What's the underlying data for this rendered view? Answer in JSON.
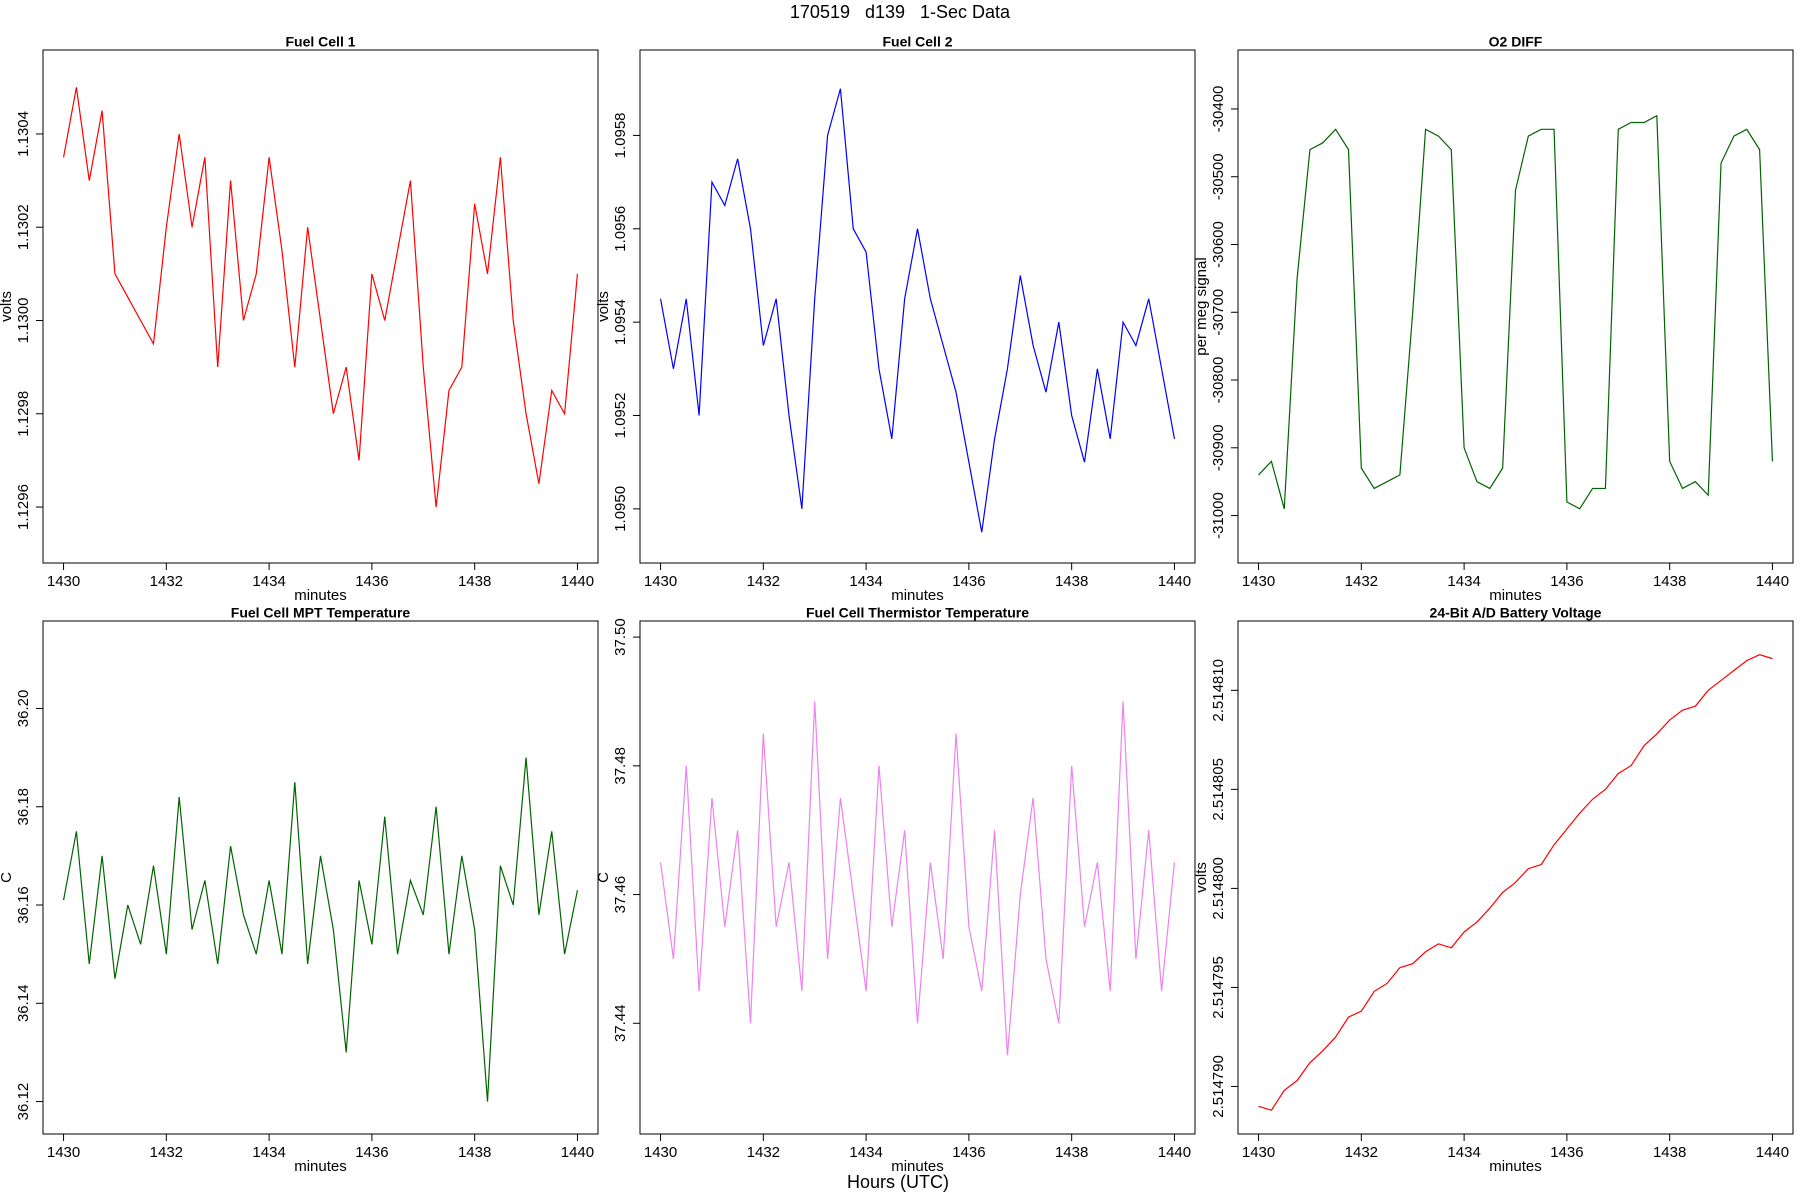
{
  "title": "170519   d139   1-Sec Data",
  "xlabel": "Hours (UTC)",
  "chart_data": [
    {
      "type": "line",
      "title": "Fuel Cell 1",
      "xlabel": "minutes",
      "ylabel": "volts",
      "color": "#ff0000",
      "x": [
        1430,
        1430.25,
        1430.5,
        1430.75,
        1431,
        1431.25,
        1431.5,
        1431.75,
        1432,
        1432.25,
        1432.5,
        1432.75,
        1433,
        1433.25,
        1433.5,
        1433.75,
        1434,
        1434.25,
        1434.5,
        1434.75,
        1435,
        1435.25,
        1435.5,
        1435.75,
        1436,
        1436.25,
        1436.5,
        1436.75,
        1437,
        1437.25,
        1437.5,
        1437.75,
        1438,
        1438.25,
        1438.5,
        1438.75,
        1439,
        1439.25,
        1439.5,
        1439.75,
        1440
      ],
      "values": [
        1.13035,
        1.1305,
        1.1303,
        1.13045,
        1.1301,
        1.13005,
        1.13,
        1.12995,
        1.1302,
        1.1304,
        1.1302,
        1.13035,
        1.1299,
        1.1303,
        1.13,
        1.1301,
        1.13035,
        1.13015,
        1.1299,
        1.1302,
        1.13,
        1.1298,
        1.1299,
        1.1297,
        1.1301,
        1.13,
        1.13015,
        1.1303,
        1.1299,
        1.1296,
        1.12985,
        1.1299,
        1.13025,
        1.1301,
        1.13035,
        1.13,
        1.1298,
        1.12965,
        1.12985,
        1.1298,
        1.1301
      ],
      "xlim": [
        1429.6,
        1440.4
      ],
      "xticks": [
        1430,
        1432,
        1434,
        1436,
        1438,
        1440
      ],
      "ylim": [
        1.12948,
        1.13058
      ],
      "yticks": [
        1.1296,
        1.1298,
        {
          "value": 1.13,
          "label": "1.1300"
        },
        1.1302,
        1.1304
      ]
    },
    {
      "type": "line",
      "title": "Fuel Cell 2",
      "xlabel": "minutes",
      "ylabel": "volts",
      "color": "#0000ff",
      "x": [
        1430,
        1430.25,
        1430.5,
        1430.75,
        1431,
        1431.25,
        1431.5,
        1431.75,
        1432,
        1432.25,
        1432.5,
        1432.75,
        1433,
        1433.25,
        1433.5,
        1433.75,
        1434,
        1434.25,
        1434.5,
        1434.75,
        1435,
        1435.25,
        1435.5,
        1435.75,
        1436,
        1436.25,
        1436.5,
        1436.75,
        1437,
        1437.25,
        1437.5,
        1437.75,
        1438,
        1438.25,
        1438.5,
        1438.75,
        1439,
        1439.25,
        1439.5,
        1439.75,
        1440
      ],
      "values": [
        1.09545,
        1.0953,
        1.09545,
        1.0952,
        1.0957,
        1.09565,
        1.09575,
        1.0956,
        1.09535,
        1.09545,
        1.0952,
        1.095,
        1.09545,
        1.0958,
        1.0959,
        1.0956,
        1.09555,
        1.0953,
        1.09515,
        1.09545,
        1.0956,
        1.09545,
        1.09535,
        1.09525,
        1.0951,
        1.09495,
        1.09515,
        1.0953,
        1.0955,
        1.09535,
        1.09525,
        1.0954,
        1.0952,
        1.0951,
        1.0953,
        1.09515,
        1.0954,
        1.09535,
        1.09545,
        1.0953,
        1.09515
      ],
      "xlim": [
        1429.6,
        1440.4
      ],
      "xticks": [
        1430,
        1432,
        1434,
        1436,
        1438,
        1440
      ],
      "ylim": [
        1.094884,
        1.095983
      ],
      "yticks": [
        {
          "value": 1.095,
          "label": "1.0950"
        },
        1.0952,
        1.0954,
        1.0956,
        1.0958
      ]
    },
    {
      "type": "line",
      "title": "O2 DIFF",
      "xlabel": "minutes",
      "ylabel": "per meg signal",
      "color": "#006400",
      "x": [
        1430,
        1430.25,
        1430.5,
        1430.75,
        1431,
        1431.25,
        1431.5,
        1431.75,
        1432,
        1432.25,
        1432.5,
        1432.75,
        1433,
        1433.25,
        1433.5,
        1433.75,
        1434,
        1434.25,
        1434.5,
        1434.75,
        1435,
        1435.25,
        1435.5,
        1435.75,
        1436,
        1436.25,
        1436.5,
        1436.75,
        1437,
        1437.25,
        1437.5,
        1437.75,
        1438,
        1438.25,
        1438.5,
        1438.75,
        1439,
        1439.25,
        1439.5,
        1439.75,
        1440
      ],
      "values": [
        -30940,
        -30920,
        -30990,
        -30650,
        -30460,
        -30450,
        -30430,
        -30460,
        -30930,
        -30960,
        -30950,
        -30940,
        -30700,
        -30430,
        -30440,
        -30460,
        -30900,
        -30950,
        -30960,
        -30930,
        -30520,
        -30440,
        -30430,
        -30430,
        -30980,
        -30990,
        -30960,
        -30960,
        -30430,
        -30420,
        -30420,
        -30410,
        -30920,
        -30960,
        -30950,
        -30970,
        -30480,
        -30440,
        -30430,
        -30460,
        -30920
      ],
      "xlim": [
        1429.6,
        1440.4
      ],
      "xticks": [
        1430,
        1432,
        1434,
        1436,
        1438,
        1440
      ],
      "ylim": [
        -31070,
        -30313
      ],
      "yticks": [
        -31000,
        -30900,
        -30800,
        -30700,
        -30600,
        -30500,
        -30400
      ]
    },
    {
      "type": "line",
      "title": "Fuel Cell MPT Temperature",
      "xlabel": "minutes",
      "ylabel": "C",
      "color": "#006400",
      "x": [
        1430,
        1430.25,
        1430.5,
        1430.75,
        1431,
        1431.25,
        1431.5,
        1431.75,
        1432,
        1432.25,
        1432.5,
        1432.75,
        1433,
        1433.25,
        1433.5,
        1433.75,
        1434,
        1434.25,
        1434.5,
        1434.75,
        1435,
        1435.25,
        1435.5,
        1435.75,
        1436,
        1436.25,
        1436.5,
        1436.75,
        1437,
        1437.25,
        1437.5,
        1437.75,
        1438,
        1438.25,
        1438.5,
        1438.75,
        1439,
        1439.25,
        1439.5,
        1439.75,
        1440
      ],
      "values": [
        36.161,
        36.175,
        36.148,
        36.17,
        36.145,
        36.16,
        36.152,
        36.168,
        36.15,
        36.182,
        36.155,
        36.165,
        36.148,
        36.172,
        36.158,
        36.15,
        36.165,
        36.15,
        36.185,
        36.148,
        36.17,
        36.155,
        36.13,
        36.165,
        36.152,
        36.178,
        36.15,
        36.165,
        36.158,
        36.18,
        36.15,
        36.17,
        36.155,
        36.12,
        36.168,
        36.16,
        36.19,
        36.158,
        36.175,
        36.15,
        36.163
      ],
      "xlim": [
        1429.6,
        1440.4
      ],
      "xticks": [
        1430,
        1432,
        1434,
        1436,
        1438,
        1440
      ],
      "ylim": [
        36.1134,
        36.2178
      ],
      "yticks": [
        36.12,
        36.14,
        36.16,
        36.18,
        {
          "value": 36.2,
          "label": "36.20"
        }
      ]
    },
    {
      "type": "line",
      "title": "Fuel Cell Thermistor Temperature",
      "xlabel": "minutes",
      "ylabel": "C",
      "color": "#ee82ee",
      "x": [
        1430,
        1430.25,
        1430.5,
        1430.75,
        1431,
        1431.25,
        1431.5,
        1431.75,
        1432,
        1432.25,
        1432.5,
        1432.75,
        1433,
        1433.25,
        1433.5,
        1433.75,
        1434,
        1434.25,
        1434.5,
        1434.75,
        1435,
        1435.25,
        1435.5,
        1435.75,
        1436,
        1436.25,
        1436.5,
        1436.75,
        1437,
        1437.25,
        1437.5,
        1437.75,
        1438,
        1438.25,
        1438.5,
        1438.75,
        1439,
        1439.25,
        1439.5,
        1439.75,
        1440
      ],
      "values": [
        37.465,
        37.45,
        37.48,
        37.445,
        37.475,
        37.455,
        37.47,
        37.44,
        37.485,
        37.455,
        37.465,
        37.445,
        37.49,
        37.45,
        37.475,
        37.46,
        37.445,
        37.48,
        37.455,
        37.47,
        37.44,
        37.465,
        37.45,
        37.485,
        37.455,
        37.445,
        37.47,
        37.435,
        37.46,
        37.475,
        37.45,
        37.44,
        37.48,
        37.455,
        37.465,
        37.445,
        37.49,
        37.45,
        37.47,
        37.445,
        37.465
      ],
      "xlim": [
        1429.6,
        1440.4
      ],
      "xticks": [
        1430,
        1432,
        1434,
        1436,
        1438,
        1440
      ],
      "ylim": [
        37.4228,
        37.5025
      ],
      "yticks": [
        37.44,
        37.46,
        37.48,
        {
          "value": 37.5,
          "label": "37.50"
        }
      ]
    },
    {
      "type": "line",
      "title": "24-Bit A/D Battery Voltage",
      "xlabel": "minutes",
      "ylabel": "volts",
      "color": "#ff0000",
      "x": [
        1430,
        1430.25,
        1430.5,
        1430.75,
        1431,
        1431.25,
        1431.5,
        1431.75,
        1432,
        1432.25,
        1432.5,
        1432.75,
        1433,
        1433.25,
        1433.5,
        1433.75,
        1434,
        1434.25,
        1434.5,
        1434.75,
        1435,
        1435.25,
        1435.5,
        1435.75,
        1436,
        1436.25,
        1436.5,
        1436.75,
        1437,
        1437.25,
        1437.5,
        1437.75,
        1438,
        1438.25,
        1438.5,
        1438.75,
        1439,
        1439.25,
        1439.5,
        1439.75,
        1440
      ],
      "values": [
        2.514789,
        2.5147888,
        2.5147898,
        2.5147903,
        2.5147912,
        2.5147918,
        2.5147925,
        2.5147935,
        2.5147938,
        2.5147948,
        2.5147952,
        2.514796,
        2.5147962,
        2.5147968,
        2.5147972,
        2.514797,
        2.5147978,
        2.5147983,
        2.514799,
        2.5147998,
        2.5148003,
        2.514801,
        2.5148012,
        2.5148022,
        2.514803,
        2.5148038,
        2.5148045,
        2.514805,
        2.5148058,
        2.5148062,
        2.5148072,
        2.5148078,
        2.5148085,
        2.514809,
        2.5148092,
        2.51481,
        2.5148105,
        2.514811,
        2.5148115,
        2.5148118,
        2.5148116
      ],
      "xlim": [
        1429.6,
        1440.4
      ],
      "xticks": [
        1430,
        1432,
        1434,
        1436,
        1438,
        1440
      ],
      "ylim": [
        2.5147876,
        2.5148135
      ],
      "yticks": [
        {
          "value": 2.51479,
          "label": "2.514790"
        },
        2.514795,
        {
          "value": 2.5148,
          "label": "2.514800"
        },
        2.514805,
        {
          "value": 2.51481,
          "label": "2.514810"
        }
      ]
    }
  ]
}
